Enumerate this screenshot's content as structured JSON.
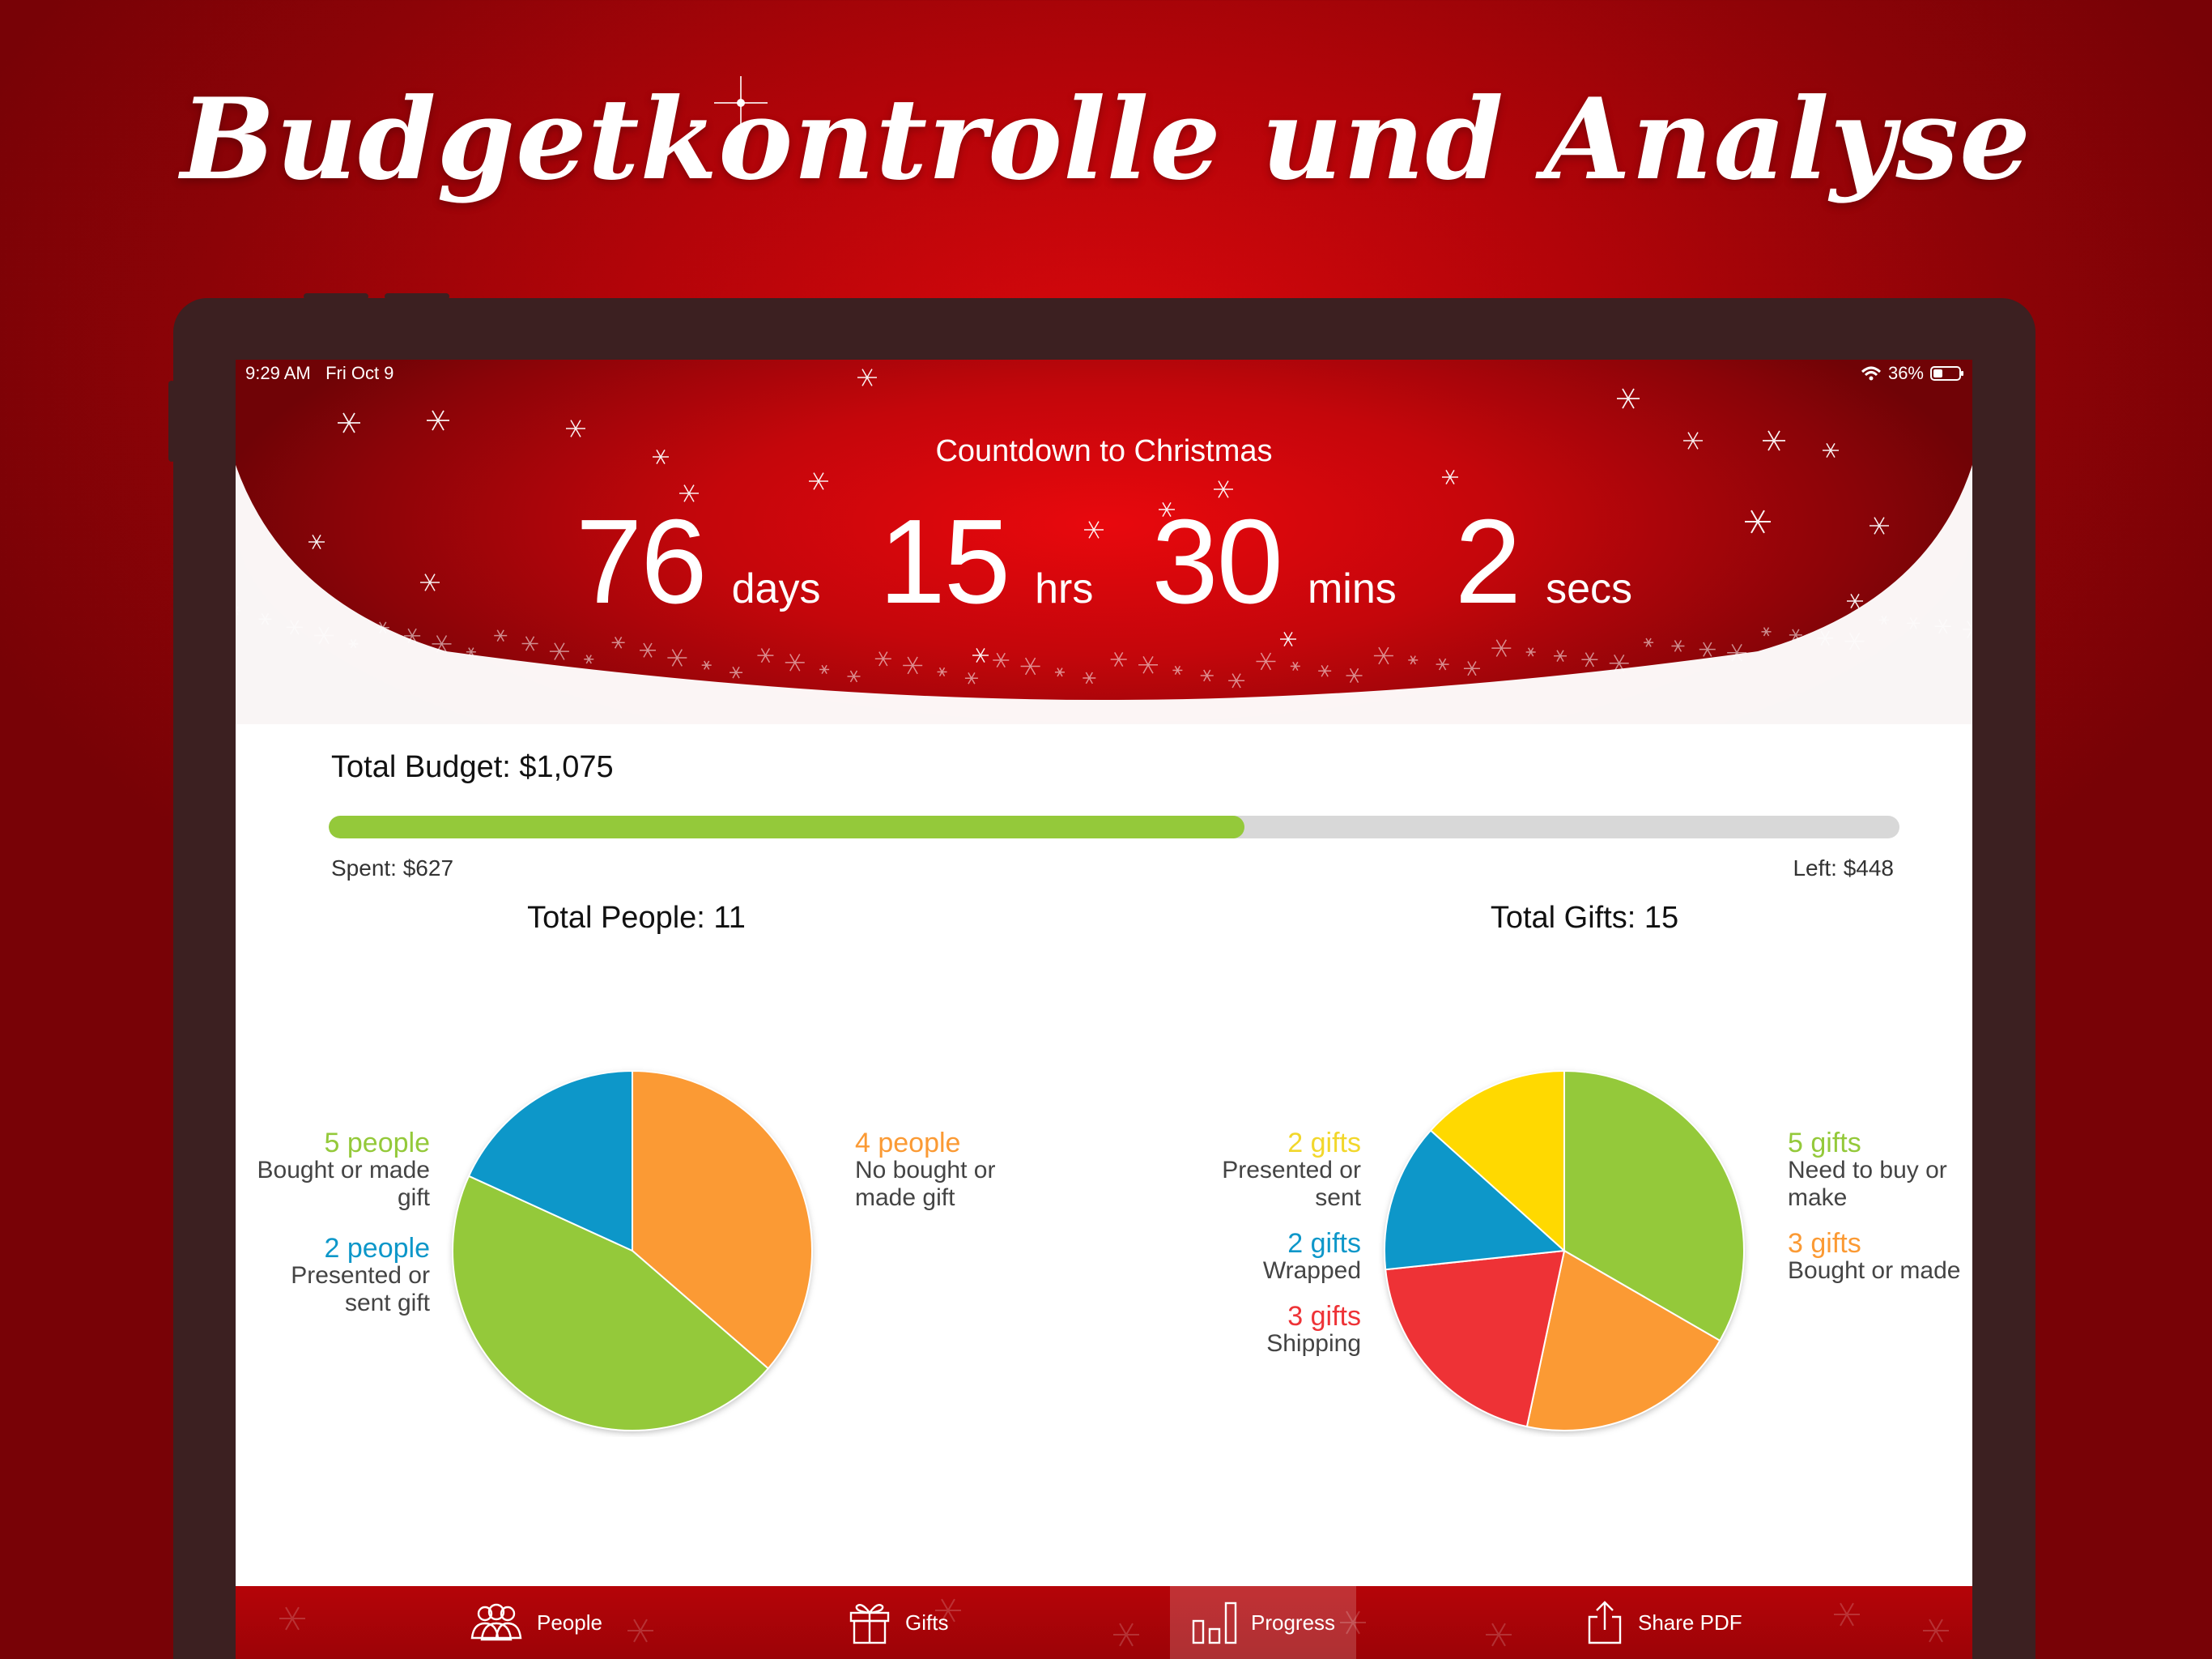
{
  "headline": "Budgetkontrolle und Analyse",
  "status_bar": {
    "time": "9:29 AM",
    "date": "Fri Oct 9",
    "battery": "36%"
  },
  "countdown": {
    "title": "Countdown to Christmas",
    "days": "76",
    "days_label": "days",
    "hours": "15",
    "hours_label": "hrs",
    "minutes": "30",
    "minutes_label": "mins",
    "seconds": "2",
    "seconds_label": "secs"
  },
  "budget": {
    "title": "Total Budget: $1,075",
    "spent_label": "Spent: $627",
    "left_label": "Left: $448",
    "spent_fraction": 0.583,
    "colors": {
      "fill": "#94c93a",
      "track": "#d8d8d8"
    }
  },
  "people": {
    "title": "Total People: 11",
    "legend": [
      {
        "count": "5 people",
        "desc": "Bought or made gift",
        "color": "#94c93a"
      },
      {
        "count": "2 people",
        "desc": "Presented or sent gift",
        "color": "#0d97c9"
      },
      {
        "count": "4 people",
        "desc": "No bought or made gift",
        "color": "#fb9a34"
      }
    ]
  },
  "gifts": {
    "title": "Total Gifts: 15",
    "legend": [
      {
        "count": "2 gifts",
        "desc": "Presented or sent",
        "color": "#f2d72b"
      },
      {
        "count": "2 gifts",
        "desc": "Wrapped",
        "color": "#0d97c9"
      },
      {
        "count": "3 gifts",
        "desc": "Shipping",
        "color": "#ee3236"
      },
      {
        "count": "5 gifts",
        "desc": "Need to buy or make",
        "color": "#94c93a"
      },
      {
        "count": "3 gifts",
        "desc": "Bought or made",
        "color": "#fb9a34"
      }
    ]
  },
  "chart_data": [
    {
      "type": "pie",
      "title": "Total People: 11",
      "categories": [
        "No bought or made gift",
        "Bought or made gift",
        "Presented or sent gift"
      ],
      "values": [
        4,
        5,
        2
      ],
      "colors": [
        "#fb9a34",
        "#94c93a",
        "#0d97c9"
      ]
    },
    {
      "type": "pie",
      "title": "Total Gifts: 15",
      "categories": [
        "Need to buy or make",
        "Bought or made",
        "Shipping",
        "Wrapped",
        "Presented or sent"
      ],
      "values": [
        5,
        3,
        3,
        2,
        2
      ],
      "colors": [
        "#94c93a",
        "#fb9a34",
        "#ee3236",
        "#0d97c9",
        "#ffd900"
      ]
    }
  ],
  "tabs": [
    {
      "label": "People",
      "icon": "people-icon"
    },
    {
      "label": "Gifts",
      "icon": "gift-icon"
    },
    {
      "label": "Progress",
      "icon": "bar-chart-icon",
      "active": true
    },
    {
      "label": "Share PDF",
      "icon": "share-icon"
    }
  ]
}
